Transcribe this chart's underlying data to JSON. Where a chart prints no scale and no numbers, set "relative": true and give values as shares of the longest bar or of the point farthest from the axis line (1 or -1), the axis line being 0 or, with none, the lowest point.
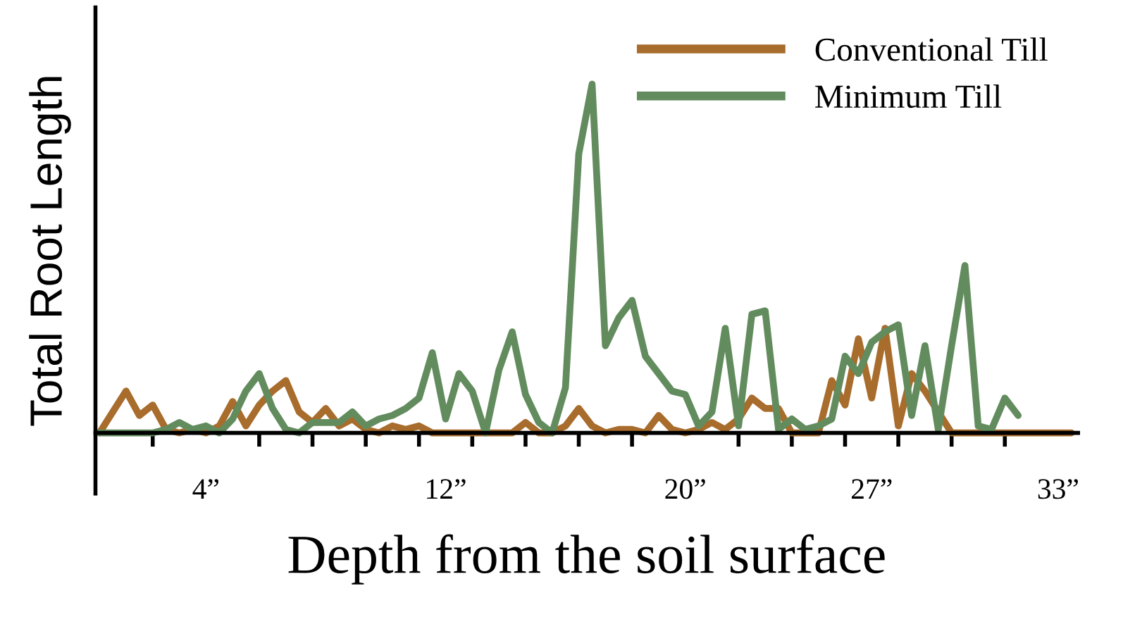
{
  "chart_data": {
    "type": "line",
    "relative": true,
    "xlabel": "Depth from the soil surface",
    "ylabel": "Total Root Length",
    "categories": [
      null,
      null,
      null,
      null,
      null,
      null,
      null,
      null,
      "4”",
      null,
      null,
      null,
      null,
      null,
      null,
      null,
      null,
      null,
      null,
      null,
      null,
      null,
      null,
      null,
      null,
      null,
      "12”",
      null,
      null,
      null,
      null,
      null,
      null,
      null,
      null,
      null,
      null,
      null,
      null,
      null,
      null,
      null,
      null,
      null,
      "20”",
      null,
      null,
      null,
      null,
      null,
      null,
      null,
      null,
      null,
      null,
      null,
      null,
      null,
      "27”",
      null,
      null,
      null,
      null,
      null,
      null,
      null,
      null,
      null,
      null,
      null,
      null,
      null,
      "33”",
      null
    ],
    "series": [
      {
        "name": "Conventional Till",
        "color": "#a86c2c",
        "values": [
          0,
          0.06,
          0.12,
          0.05,
          0.08,
          0.01,
          0,
          0.01,
          0,
          0.02,
          0.09,
          0.02,
          0.08,
          0.12,
          0.15,
          0.06,
          0.03,
          0.07,
          0.02,
          0.04,
          0.01,
          0,
          0.02,
          0.01,
          0.02,
          0,
          0,
          0,
          0,
          0,
          0,
          0,
          0.03,
          0,
          0,
          0.02,
          0.07,
          0.02,
          0,
          0.01,
          0.01,
          0,
          0.05,
          0.01,
          0,
          0.01,
          0.03,
          0.01,
          0.04,
          0.1,
          0.07,
          0.07,
          0,
          0,
          0,
          0.15,
          0.08,
          0.27,
          0.1,
          0.3,
          0.02,
          0.17,
          0.12,
          0.06,
          0,
          0,
          0,
          0,
          0,
          0,
          0,
          0,
          0,
          0
        ]
      },
      {
        "name": "Minimum Till",
        "color": "#628c5e",
        "values": [
          0,
          0,
          0,
          0,
          0,
          0.01,
          0.03,
          0.01,
          0.02,
          0,
          0.04,
          0.12,
          0.17,
          0.07,
          0.01,
          0,
          0.03,
          0.03,
          0.03,
          0.06,
          0.02,
          0.04,
          0.05,
          0.07,
          0.1,
          0.23,
          0.04,
          0.17,
          0.12,
          0,
          0.18,
          0.29,
          0.11,
          0.03,
          0,
          0.13,
          0.8,
          1.0,
          0.25,
          0.33,
          0.38,
          0.22,
          0.17,
          0.12,
          0.11,
          0.02,
          0.06,
          0.3,
          0.02,
          0.34,
          0.35,
          0.01,
          0.04,
          0.01,
          0.02,
          0.04,
          0.22,
          0.17,
          0.26,
          0.29,
          0.31,
          0.05,
          0.25,
          0.01,
          0.25,
          0.48,
          0.02,
          0.01,
          0.1,
          0.05,
          null,
          null,
          null,
          null
        ]
      }
    ],
    "legend": "top right",
    "line_style": "solid"
  }
}
